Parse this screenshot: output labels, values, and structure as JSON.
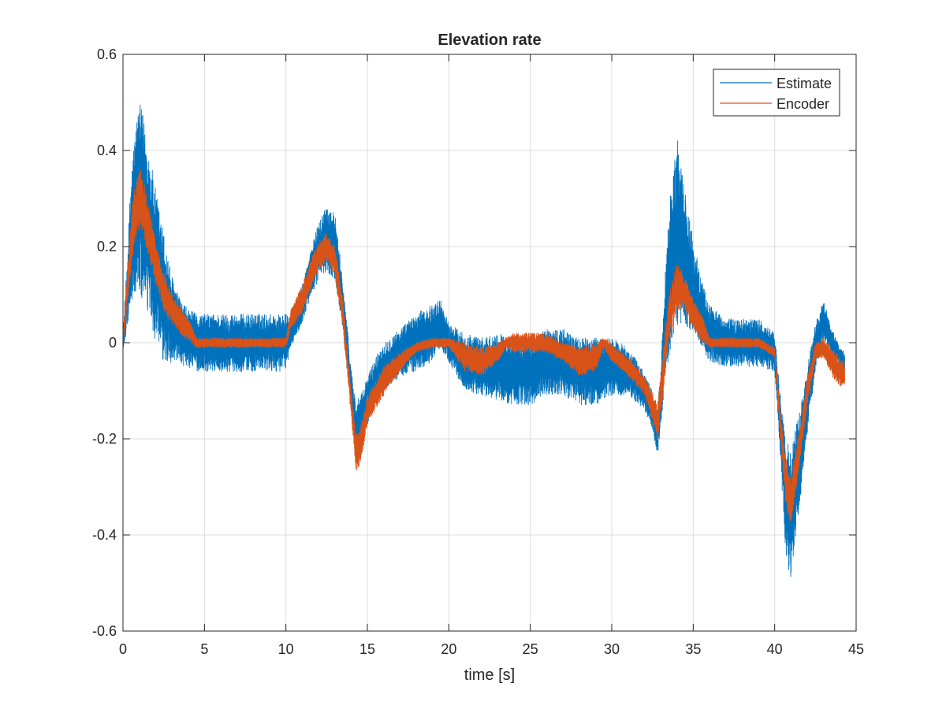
{
  "chart_data": {
    "type": "line",
    "title": "Elevation rate",
    "xlabel": "time [s]",
    "ylabel": "",
    "xlim": [
      0,
      45
    ],
    "ylim": [
      -0.6,
      0.6
    ],
    "xticks": [
      0,
      5,
      10,
      15,
      20,
      25,
      30,
      35,
      40,
      45
    ],
    "xtick_labels": [
      "0",
      "5",
      "10",
      "15",
      "20",
      "25",
      "30",
      "35",
      "40",
      "45"
    ],
    "yticks": [
      -0.6,
      -0.4,
      -0.2,
      0,
      0.2,
      0.4,
      0.6
    ],
    "ytick_labels": [
      "-0.6",
      "-0.4",
      "-0.2",
      "0",
      "0.2",
      "0.4",
      "0.6"
    ],
    "grid": true,
    "legend_position": "top-right",
    "series": [
      {
        "name": "Estimate",
        "color": "#0072BD",
        "style": "noisy band",
        "t": [
          0,
          0.3,
          0.5,
          0.8,
          1.0,
          1.2,
          1.5,
          2.0,
          2.5,
          3.0,
          3.5,
          4.0,
          4.5,
          5,
          6,
          7,
          8,
          9,
          10,
          10.3,
          11,
          11.5,
          12,
          12.5,
          13,
          13.5,
          14.0,
          14.3,
          14.6,
          15,
          15.5,
          16,
          17,
          18,
          19,
          19.5,
          20,
          21,
          22,
          23,
          24,
          25,
          26,
          27,
          28,
          29,
          30,
          31,
          32,
          32.5,
          32.8,
          33.0,
          33.3,
          33.7,
          34.0,
          34.3,
          34.7,
          35,
          35.5,
          36,
          37,
          38,
          39,
          40,
          40.3,
          40.7,
          41.0,
          41.5,
          42,
          42.5,
          43,
          43.5,
          44,
          44.3
        ],
        "mean": [
          0.0,
          0.12,
          0.22,
          0.28,
          0.3,
          0.28,
          0.24,
          0.16,
          0.09,
          0.05,
          0.02,
          0.01,
          0.0,
          0.0,
          0.0,
          0.0,
          0.0,
          0.0,
          0.0,
          0.02,
          0.08,
          0.14,
          0.19,
          0.22,
          0.2,
          0.08,
          -0.1,
          -0.18,
          -0.16,
          -0.12,
          -0.08,
          -0.05,
          -0.02,
          0.0,
          0.02,
          0.04,
          0.0,
          -0.04,
          -0.05,
          -0.05,
          -0.06,
          -0.06,
          -0.04,
          -0.04,
          -0.06,
          -0.06,
          -0.05,
          -0.06,
          -0.1,
          -0.14,
          -0.19,
          -0.12,
          0.05,
          0.18,
          0.23,
          0.2,
          0.15,
          0.12,
          0.06,
          0.02,
          0.0,
          0.0,
          0.0,
          -0.02,
          -0.15,
          -0.33,
          -0.35,
          -0.25,
          -0.12,
          -0.01,
          0.05,
          0.0,
          -0.03,
          -0.04
        ],
        "spread": [
          0.02,
          0.08,
          0.14,
          0.18,
          0.2,
          0.2,
          0.18,
          0.16,
          0.14,
          0.09,
          0.07,
          0.06,
          0.06,
          0.06,
          0.06,
          0.06,
          0.06,
          0.06,
          0.06,
          0.03,
          0.04,
          0.05,
          0.06,
          0.07,
          0.07,
          0.05,
          0.05,
          0.06,
          0.05,
          0.05,
          0.05,
          0.05,
          0.05,
          0.06,
          0.06,
          0.05,
          0.04,
          0.06,
          0.06,
          0.07,
          0.07,
          0.07,
          0.07,
          0.07,
          0.07,
          0.07,
          0.06,
          0.05,
          0.04,
          0.04,
          0.05,
          0.06,
          0.12,
          0.18,
          0.2,
          0.16,
          0.12,
          0.1,
          0.07,
          0.06,
          0.05,
          0.05,
          0.05,
          0.04,
          0.06,
          0.12,
          0.14,
          0.1,
          0.07,
          0.05,
          0.04,
          0.03,
          0.02,
          0.02
        ]
      },
      {
        "name": "Encoder",
        "color": "#D95319",
        "style": "noisy band",
        "t": [
          0,
          0.3,
          0.6,
          0.9,
          1.1,
          1.4,
          1.8,
          2.2,
          2.7,
          3.2,
          3.7,
          4.2,
          4.5,
          5,
          6,
          7,
          8,
          9,
          10,
          10.3,
          11,
          11.5,
          12,
          12.5,
          13,
          13.5,
          14.0,
          14.3,
          14.6,
          15,
          16,
          17,
          18,
          19,
          20,
          21,
          22,
          23,
          23.5,
          24,
          25,
          26,
          27,
          28,
          29,
          29.5,
          30,
          31,
          32,
          32.5,
          32.8,
          33.1,
          33.5,
          34.0,
          34.5,
          35,
          35.5,
          36,
          37,
          38,
          39,
          40,
          40.3,
          40.7,
          41.0,
          41.5,
          42,
          42.5,
          43,
          43.5,
          44,
          44.3
        ],
        "mean": [
          0.0,
          0.13,
          0.24,
          0.29,
          0.3,
          0.26,
          0.2,
          0.14,
          0.09,
          0.06,
          0.04,
          0.02,
          0.0,
          0.0,
          0.0,
          0.0,
          0.0,
          0.0,
          0.0,
          0.05,
          0.09,
          0.14,
          0.18,
          0.2,
          0.17,
          0.06,
          -0.12,
          -0.23,
          -0.21,
          -0.14,
          -0.08,
          -0.04,
          -0.01,
          0.0,
          0.0,
          -0.03,
          -0.04,
          -0.02,
          0.0,
          0.0,
          0.0,
          0.0,
          -0.02,
          -0.04,
          -0.03,
          0.0,
          -0.02,
          -0.05,
          -0.09,
          -0.13,
          -0.17,
          -0.08,
          0.05,
          0.12,
          0.1,
          0.06,
          0.03,
          0.0,
          0.0,
          0.0,
          0.0,
          -0.02,
          -0.15,
          -0.29,
          -0.33,
          -0.22,
          -0.1,
          -0.02,
          -0.01,
          -0.04,
          -0.06,
          -0.07
        ],
        "spread": [
          0.01,
          0.04,
          0.06,
          0.06,
          0.06,
          0.06,
          0.05,
          0.04,
          0.04,
          0.03,
          0.03,
          0.02,
          0.01,
          0.01,
          0.01,
          0.01,
          0.01,
          0.01,
          0.01,
          0.02,
          0.03,
          0.03,
          0.03,
          0.03,
          0.03,
          0.03,
          0.03,
          0.04,
          0.04,
          0.03,
          0.03,
          0.02,
          0.01,
          0.01,
          0.01,
          0.03,
          0.03,
          0.02,
          0.01,
          0.02,
          0.02,
          0.02,
          0.02,
          0.03,
          0.03,
          0.01,
          0.02,
          0.02,
          0.02,
          0.03,
          0.04,
          0.05,
          0.05,
          0.05,
          0.04,
          0.03,
          0.03,
          0.01,
          0.01,
          0.01,
          0.01,
          0.01,
          0.03,
          0.05,
          0.05,
          0.04,
          0.03,
          0.02,
          0.02,
          0.03,
          0.03,
          0.03
        ]
      }
    ]
  }
}
